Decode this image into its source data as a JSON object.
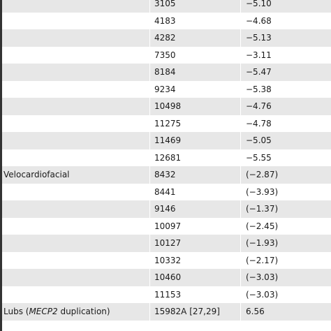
{
  "table": {
    "rows": [
      {
        "group": "",
        "id": "3105",
        "id_ital": "",
        "id_post": "",
        "value": "−5.10"
      },
      {
        "group": "",
        "id": "4183",
        "id_ital": "",
        "id_post": "",
        "value": "−4.68"
      },
      {
        "group": "",
        "id": "4282",
        "id_ital": "",
        "id_post": "",
        "value": "−5.13"
      },
      {
        "group": "",
        "id": "7350",
        "id_ital": "",
        "id_post": "",
        "value": "−3.11"
      },
      {
        "group": "",
        "id": "8184",
        "id_ital": "",
        "id_post": "",
        "value": "−5.47"
      },
      {
        "group": "",
        "id": "9234",
        "id_ital": "",
        "id_post": "",
        "value": "−5.38"
      },
      {
        "group": "",
        "id": "10498",
        "id_ital": "",
        "id_post": "",
        "value": "−4.76"
      },
      {
        "group": "",
        "id": "11275",
        "id_ital": "",
        "id_post": "",
        "value": "−4.78"
      },
      {
        "group": "",
        "id": "11469",
        "id_ital": "",
        "id_post": "",
        "value": "−5.05"
      },
      {
        "group": "",
        "id": "12681",
        "id_ital": "",
        "id_post": "",
        "value": "−5.55"
      },
      {
        "group": "Velocardiofacial",
        "id": "8432",
        "id_ital": "",
        "id_post": "",
        "value": "(−2.87)"
      },
      {
        "group": "",
        "id": "8441",
        "id_ital": "",
        "id_post": "",
        "value": "(−3.93)"
      },
      {
        "group": "",
        "id": "9146",
        "id_ital": "",
        "id_post": "",
        "value": "(−1.37)"
      },
      {
        "group": "",
        "id": "10097",
        "id_ital": "",
        "id_post": "",
        "value": "(−2.45)"
      },
      {
        "group": "",
        "id": "10127",
        "id_ital": "",
        "id_post": "",
        "value": "(−1.93)"
      },
      {
        "group": "",
        "id": "10332",
        "id_ital": "",
        "id_post": "",
        "value": "(−2.17)"
      },
      {
        "group": "",
        "id": "10460",
        "id_ital": "",
        "id_post": "",
        "value": "(−3.03)"
      },
      {
        "group": "",
        "id": "11153",
        "id_ital": "",
        "id_post": "",
        "value": "(−3.03)"
      },
      {
        "group": "Lubs (",
        "group_ital": "MECP2",
        "group_post": " duplication)",
        "id": "15982A [27,29]",
        "value": "6.56"
      }
    ]
  },
  "colors": {
    "shaded_row": "#e7e7e7",
    "text": "#1a1a1a",
    "left_rule": "#333333"
  }
}
